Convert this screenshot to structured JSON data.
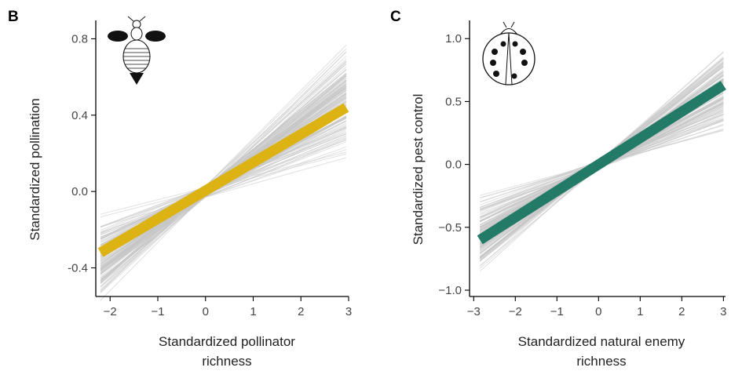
{
  "colors": {
    "bootstrap": "#c6c6c6",
    "pollination_fit": "#dcb313",
    "pest_fit": "#237a67"
  },
  "icons": [
    "bee-icon",
    "ladybug-icon"
  ],
  "chart_data": [
    {
      "panel": "B",
      "type": "line",
      "xlabel": [
        "Standardized pollinator",
        "richness"
      ],
      "ylabel": "Standardized pollination",
      "xlim": [
        -2.3,
        3.0
      ],
      "ylim": [
        -0.55,
        0.88
      ],
      "x_ticks": [
        -2,
        -1,
        0,
        1,
        2,
        3
      ],
      "x_tick_labels": [
        "−2",
        "−1",
        "0",
        "1",
        "2",
        "3"
      ],
      "y_ticks": [
        -0.4,
        0.0,
        0.4,
        0.8
      ],
      "y_tick_labels": [
        "-0.4",
        "0.0",
        "0.4",
        "0.8"
      ],
      "fit_line": {
        "x": [
          -2.2,
          2.95
        ],
        "y": [
          -0.32,
          0.44
        ]
      },
      "bootstrap_band": {
        "slope_range": [
          0.05,
          0.27
        ],
        "pivot": [
          0.0,
          0.0
        ],
        "x": [
          -2.2,
          2.95
        ]
      },
      "fit_color": "#dcb313",
      "icon": "bee-icon"
    },
    {
      "panel": "C",
      "type": "line",
      "xlabel": [
        "Standardized natural enemy",
        "richness"
      ],
      "ylabel": "Standardized pest control",
      "xlim": [
        -3.1,
        3.05
      ],
      "ylim": [
        -1.05,
        1.12
      ],
      "x_ticks": [
        -3,
        -2,
        -1,
        0,
        1,
        2,
        3
      ],
      "x_tick_labels": [
        "−3",
        "−2",
        "−1",
        "0",
        "1",
        "2",
        "3"
      ],
      "y_ticks": [
        -1.0,
        -0.5,
        0.0,
        0.5,
        1.0
      ],
      "y_tick_labels": [
        "−1.0",
        "−0.5",
        "0.0",
        "0.5",
        "1.0"
      ],
      "fit_line": {
        "x": [
          -2.85,
          3.0
        ],
        "y": [
          -0.6,
          0.63
        ]
      },
      "bootstrap_band": {
        "slope_range": [
          0.07,
          0.33
        ],
        "pivot": [
          0.0,
          0.0
        ],
        "x": [
          -2.85,
          3.0
        ]
      },
      "fit_color": "#237a67",
      "icon": "ladybug-icon"
    }
  ]
}
